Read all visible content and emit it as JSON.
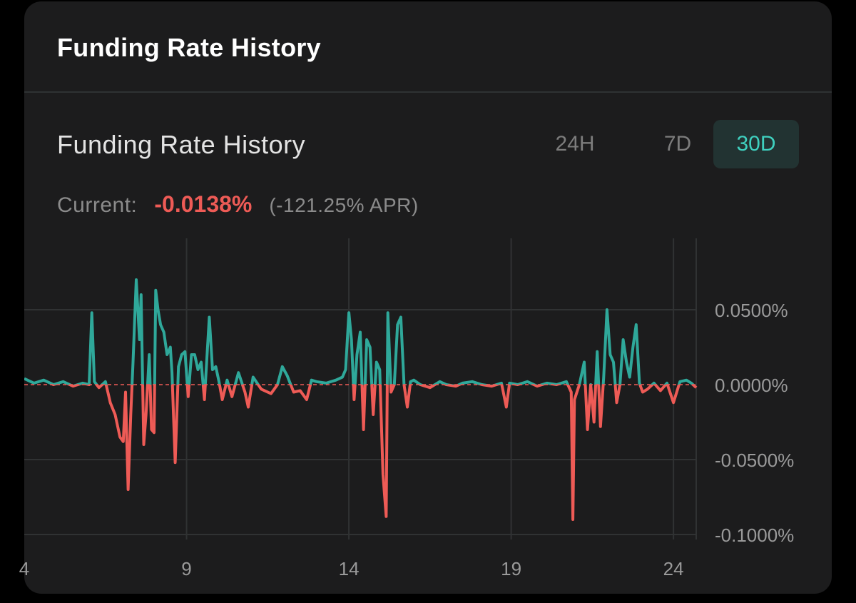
{
  "header": {
    "title": "Funding Rate History"
  },
  "chart_section": {
    "title": "Funding Rate History",
    "tabs": [
      {
        "label": "24H",
        "active": false
      },
      {
        "label": "7D",
        "active": false
      },
      {
        "label": "30D",
        "active": true
      }
    ],
    "current_label": "Current:",
    "current_value": "-0.0138%",
    "current_apr": "(-121.25% APR)"
  },
  "colors": {
    "positive": "#2fa89a",
    "negative": "#ee5b56",
    "accent": "#3fd0bf",
    "grid": "#303233"
  },
  "chart_data": {
    "type": "line",
    "title": "",
    "xlabel": "",
    "ylabel": "",
    "x_unit": "day",
    "xlim": [
      4,
      24.7
    ],
    "ylim": [
      -0.1,
      0.1
    ],
    "x_ticks": [
      {
        "value": 4,
        "label": "4"
      },
      {
        "value": 9,
        "label": "9"
      },
      {
        "value": 14,
        "label": "14"
      },
      {
        "value": 19,
        "label": "19"
      },
      {
        "value": 24,
        "label": "24"
      }
    ],
    "y_ticks": [
      {
        "value": 0.05,
        "label": "0.0500%"
      },
      {
        "value": 0,
        "label": "0.0000%"
      },
      {
        "value": -0.05,
        "label": "-0.0500%"
      },
      {
        "value": -0.1,
        "label": "-0.1000%"
      }
    ],
    "zero_line": "dashed",
    "grid": true,
    "series": [
      {
        "x": [
          4.0,
          4.3,
          4.6,
          4.9,
          5.2,
          5.5,
          5.8,
          6.0,
          6.08,
          6.16,
          6.3,
          6.5,
          6.65,
          6.8,
          6.95,
          7.05,
          7.12,
          7.2,
          7.28,
          7.35,
          7.45,
          7.55,
          7.6,
          7.68,
          7.75,
          7.85,
          7.92,
          8.0,
          8.05,
          8.12,
          8.2,
          8.3,
          8.4,
          8.5,
          8.55,
          8.65,
          8.75,
          8.85,
          8.95,
          9.05,
          9.15,
          9.25,
          9.35,
          9.45,
          9.55,
          9.7,
          9.8,
          9.9,
          10.0,
          10.1,
          10.25,
          10.4,
          10.6,
          10.8,
          10.9,
          11.05,
          11.3,
          11.6,
          11.8,
          11.95,
          12.1,
          12.3,
          12.5,
          12.7,
          12.85,
          13.0,
          13.3,
          13.6,
          13.8,
          13.9,
          14.0,
          14.08,
          14.16,
          14.25,
          14.35,
          14.45,
          14.55,
          14.65,
          14.75,
          14.85,
          14.95,
          15.05,
          15.15,
          15.2,
          15.3,
          15.4,
          15.5,
          15.6,
          15.7,
          15.8,
          15.9,
          16.0,
          16.2,
          16.5,
          16.8,
          17.0,
          17.3,
          17.5,
          17.8,
          18.1,
          18.4,
          18.7,
          18.85,
          18.95,
          19.2,
          19.5,
          19.8,
          20.1,
          20.4,
          20.7,
          20.85,
          20.9,
          20.95,
          21.1,
          21.25,
          21.35,
          21.45,
          21.55,
          21.65,
          21.75,
          21.85,
          21.95,
          22.05,
          22.15,
          22.25,
          22.35,
          22.45,
          22.55,
          22.65,
          22.75,
          22.85,
          22.95,
          23.05,
          23.2,
          23.4,
          23.6,
          23.8,
          24.0,
          24.2,
          24.4,
          24.55,
          24.7
        ],
        "y": [
          0.004,
          0.001,
          0.003,
          0.0,
          0.002,
          -0.001,
          0.001,
          0.0,
          0.048,
          0.002,
          -0.002,
          0.002,
          -0.012,
          -0.02,
          -0.035,
          -0.038,
          -0.005,
          -0.07,
          -0.02,
          0.014,
          0.07,
          0.03,
          0.06,
          -0.04,
          -0.02,
          0.02,
          -0.03,
          -0.032,
          0.063,
          0.05,
          0.04,
          0.035,
          0.02,
          0.025,
          0.008,
          -0.052,
          0.012,
          0.02,
          0.022,
          -0.008,
          0.02,
          0.02,
          0.01,
          0.015,
          -0.01,
          0.045,
          0.01,
          0.012,
          0.002,
          -0.01,
          0.003,
          -0.008,
          0.008,
          -0.005,
          -0.015,
          0.005,
          -0.003,
          -0.006,
          0.0,
          0.012,
          0.006,
          -0.005,
          -0.004,
          -0.01,
          0.003,
          0.002,
          0.001,
          0.003,
          0.005,
          0.01,
          0.048,
          0.03,
          -0.01,
          0.02,
          0.035,
          -0.03,
          0.03,
          0.025,
          -0.02,
          0.015,
          0.01,
          -0.06,
          -0.088,
          0.048,
          -0.005,
          0.0,
          0.04,
          0.045,
          0.0,
          -0.015,
          0.002,
          0.003,
          0.0,
          -0.002,
          0.002,
          0.0,
          -0.001,
          0.001,
          0.002,
          0.0,
          -0.001,
          0.001,
          -0.015,
          0.001,
          0.0,
          0.002,
          -0.001,
          0.001,
          0.0,
          0.002,
          -0.005,
          -0.09,
          -0.01,
          0.0,
          0.015,
          -0.03,
          0.0,
          -0.025,
          0.022,
          -0.028,
          0.005,
          0.05,
          0.02,
          0.015,
          -0.012,
          0.0,
          0.03,
          0.015,
          0.005,
          0.025,
          0.04,
          0.001,
          -0.005,
          -0.003,
          0.001,
          -0.004,
          0.001,
          -0.012,
          0.002,
          0.003,
          0.001,
          -0.002
        ]
      }
    ]
  }
}
